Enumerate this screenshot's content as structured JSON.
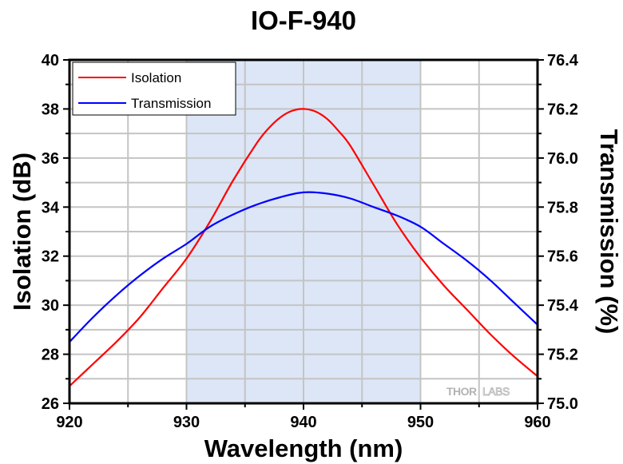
{
  "chart_data": {
    "type": "line",
    "title": "IO-F-940",
    "xlabel": "Wavelength (nm)",
    "ylabel": "Isolation (dB)",
    "y2label": "Transmission (%)",
    "xlim": [
      920,
      960
    ],
    "ylim": [
      26,
      40
    ],
    "y2lim": [
      75.0,
      76.4
    ],
    "x_ticks": [
      920,
      930,
      940,
      950,
      960
    ],
    "x_tick_labels": [
      "920",
      "930",
      "940",
      "950",
      "960"
    ],
    "x_minor_step": 5,
    "y_ticks": [
      26,
      28,
      30,
      32,
      34,
      36,
      38,
      40
    ],
    "y_tick_labels": [
      "26",
      "28",
      "30",
      "32",
      "34",
      "36",
      "38",
      "40"
    ],
    "y_minor_step": 1,
    "y2_ticks": [
      75.0,
      75.2,
      75.4,
      75.6,
      75.8,
      76.0,
      76.2,
      76.4
    ],
    "y2_tick_labels": [
      "75.0",
      "75.2",
      "75.4",
      "75.6",
      "75.8",
      "76.0",
      "76.2",
      "76.4"
    ],
    "grid": true,
    "shaded_region": {
      "x_from": 930,
      "x_to": 950,
      "color": "#dce6f6"
    },
    "legend_position": "top-left",
    "watermark": {
      "bold": "THOR",
      "light": "LABS"
    },
    "series": [
      {
        "name": "Isolation",
        "axis": "left",
        "color": "#ff0000",
        "x": [
          920,
          922,
          924,
          926,
          928,
          930,
          932,
          934,
          936,
          937,
          938,
          939,
          940,
          941,
          942,
          943,
          944,
          946,
          948,
          950,
          952,
          954,
          956,
          958,
          960
        ],
        "values": [
          26.7,
          27.6,
          28.5,
          29.5,
          30.7,
          31.9,
          33.4,
          35.1,
          36.6,
          37.2,
          37.65,
          37.92,
          38.0,
          37.9,
          37.6,
          37.1,
          36.5,
          34.9,
          33.3,
          31.95,
          30.8,
          29.8,
          28.8,
          27.9,
          27.1
        ]
      },
      {
        "name": "Transmission",
        "axis": "right",
        "color": "#0000ff",
        "x": [
          920,
          922,
          924,
          926,
          928,
          930,
          932,
          934,
          936,
          938,
          940,
          942,
          944,
          946,
          948,
          950,
          952,
          954,
          956,
          958,
          960
        ],
        "values": [
          75.25,
          75.35,
          75.44,
          75.52,
          75.59,
          75.65,
          75.72,
          75.77,
          75.81,
          75.84,
          75.86,
          75.855,
          75.835,
          75.8,
          75.765,
          75.72,
          75.65,
          75.58,
          75.5,
          75.41,
          75.32
        ]
      }
    ]
  }
}
